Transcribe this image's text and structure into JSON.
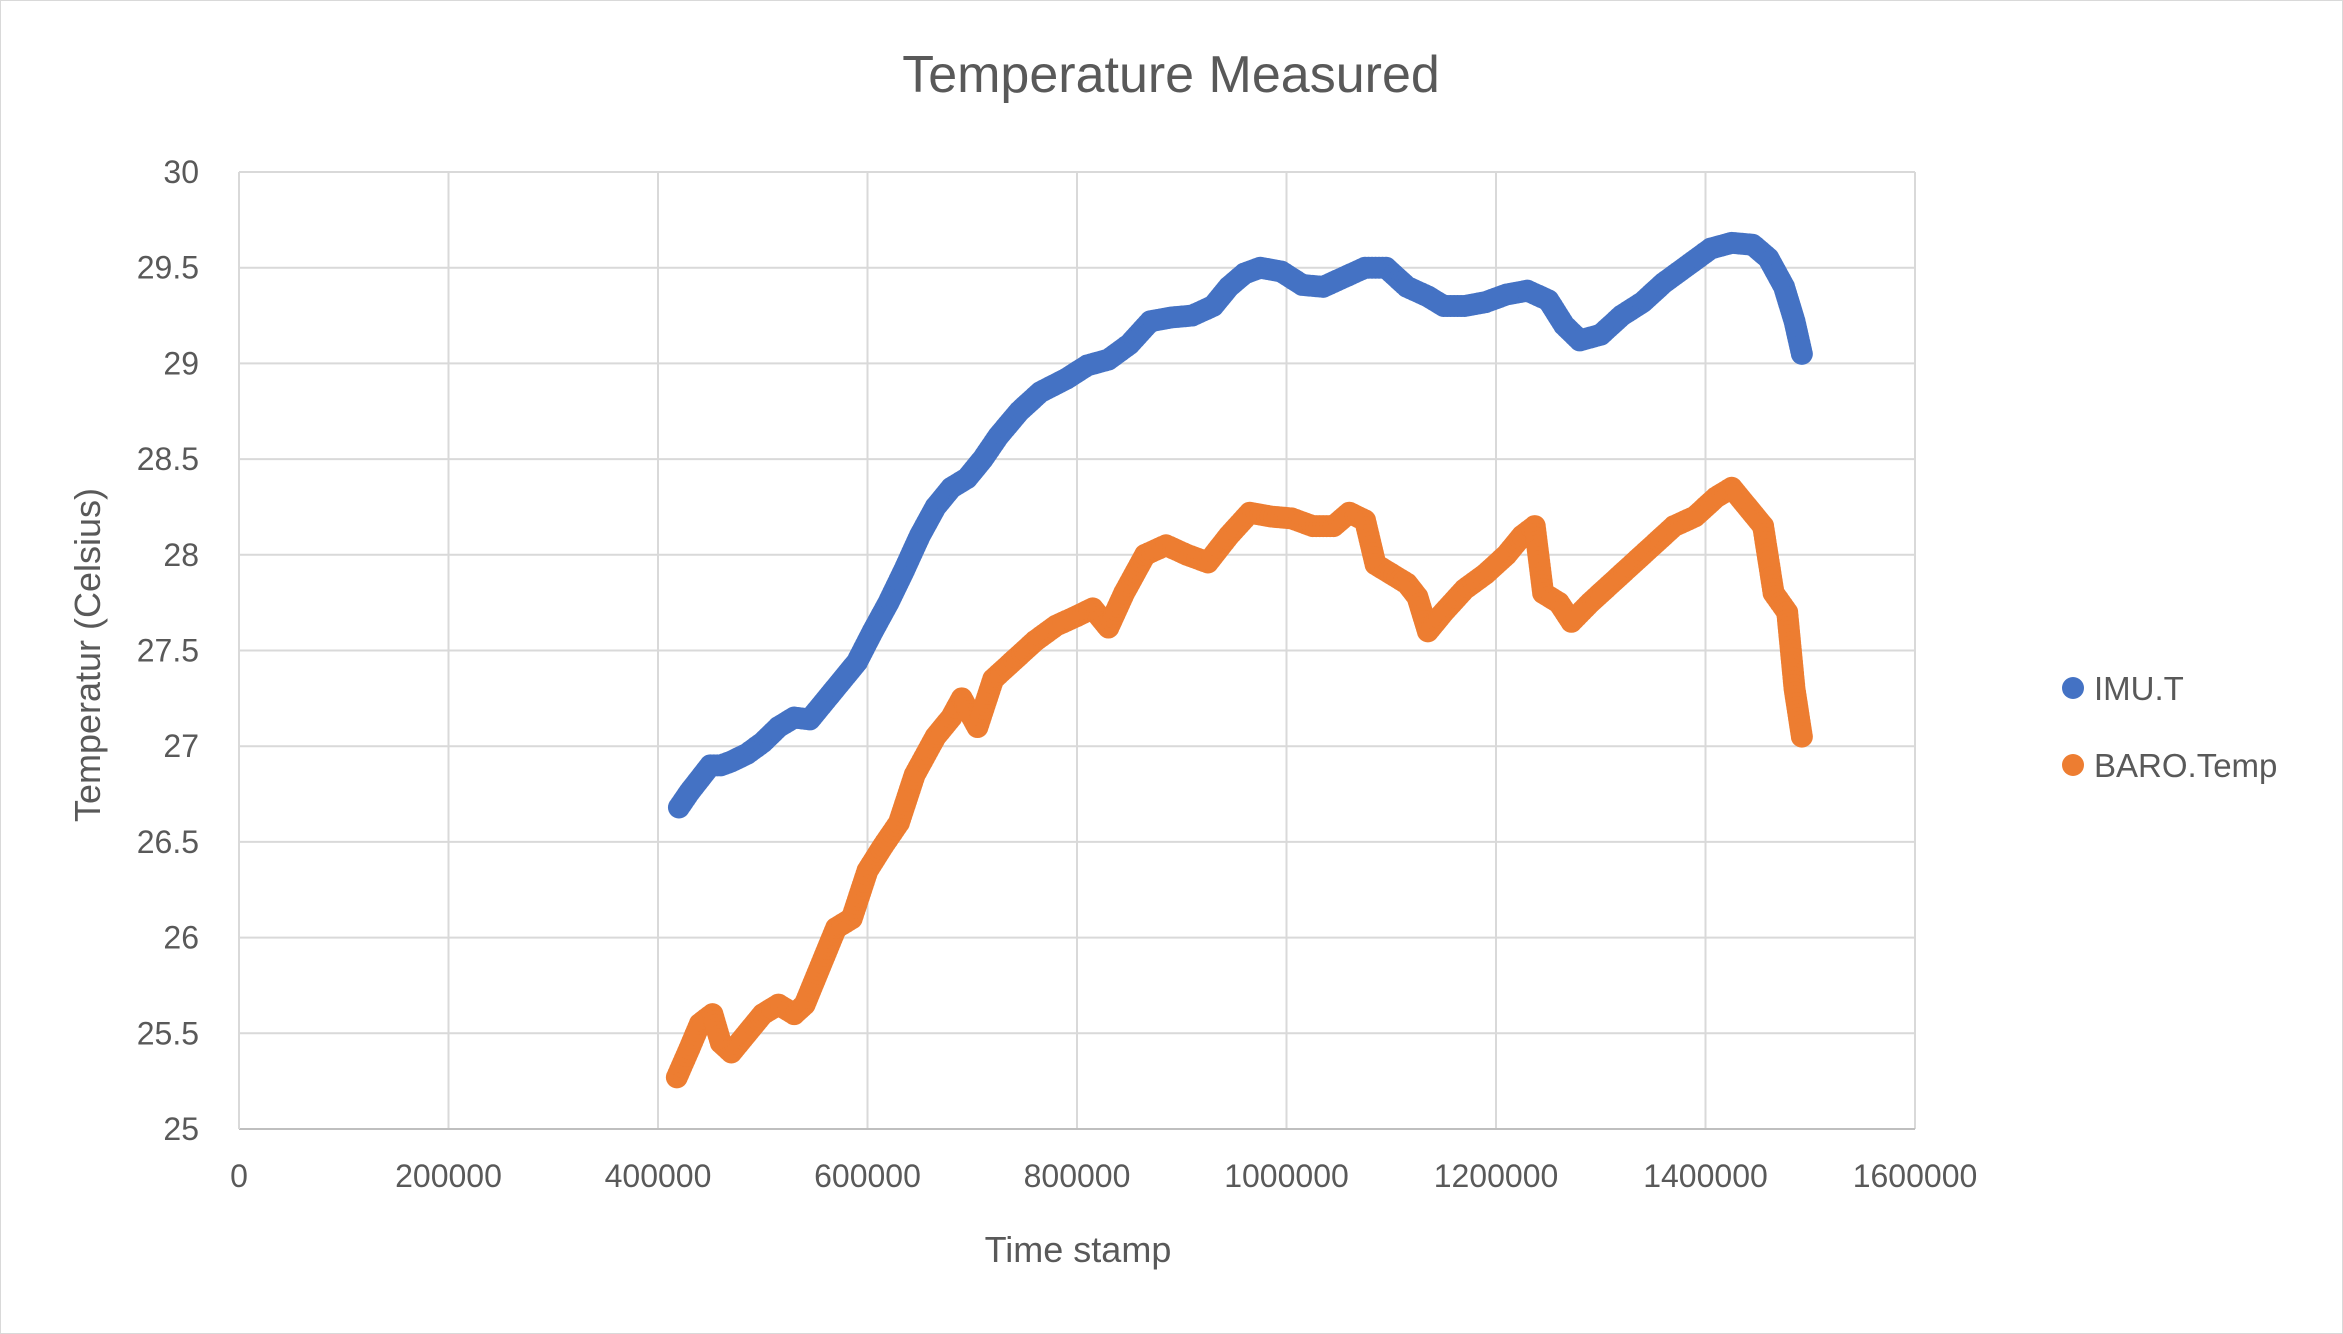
{
  "chart_data": {
    "type": "scatter",
    "title": "Temperature Measured",
    "xlabel": "Time stamp",
    "ylabel": "Temperatur (Celsius)",
    "xlim": [
      0,
      1600000
    ],
    "ylim": [
      25,
      30
    ],
    "x_ticks": [
      "0",
      "200000",
      "400000",
      "600000",
      "800000",
      "1000000",
      "1200000",
      "1400000",
      "1600000"
    ],
    "y_ticks": [
      "25",
      "25.5",
      "26",
      "26.5",
      "27",
      "27.5",
      "28",
      "28.5",
      "29",
      "29.5",
      "30"
    ],
    "grid": true,
    "legend_position": "right",
    "series": [
      {
        "name": "IMU.T",
        "color": "#4472C4",
        "points": [
          [
            420000,
            26.68
          ],
          [
            430000,
            26.76
          ],
          [
            440000,
            26.83
          ],
          [
            450000,
            26.9
          ],
          [
            460000,
            26.9
          ],
          [
            470000,
            26.92
          ],
          [
            485000,
            26.96
          ],
          [
            500000,
            27.02
          ],
          [
            515000,
            27.1
          ],
          [
            530000,
            27.15
          ],
          [
            545000,
            27.14
          ],
          [
            560000,
            27.24
          ],
          [
            575000,
            27.34
          ],
          [
            590000,
            27.44
          ],
          [
            605000,
            27.6
          ],
          [
            620000,
            27.75
          ],
          [
            635000,
            27.92
          ],
          [
            650000,
            28.1
          ],
          [
            665000,
            28.25
          ],
          [
            680000,
            28.35
          ],
          [
            695000,
            28.4
          ],
          [
            710000,
            28.5
          ],
          [
            725000,
            28.62
          ],
          [
            745000,
            28.75
          ],
          [
            765000,
            28.85
          ],
          [
            790000,
            28.92
          ],
          [
            810000,
            28.99
          ],
          [
            830000,
            29.02
          ],
          [
            850000,
            29.1
          ],
          [
            870000,
            29.22
          ],
          [
            890000,
            29.24
          ],
          [
            910000,
            29.25
          ],
          [
            930000,
            29.3
          ],
          [
            945000,
            29.4
          ],
          [
            960000,
            29.47
          ],
          [
            975000,
            29.5
          ],
          [
            995000,
            29.48
          ],
          [
            1015000,
            29.41
          ],
          [
            1035000,
            29.4
          ],
          [
            1055000,
            29.45
          ],
          [
            1075000,
            29.5
          ],
          [
            1095000,
            29.5
          ],
          [
            1115000,
            29.4
          ],
          [
            1135000,
            29.35
          ],
          [
            1150000,
            29.3
          ],
          [
            1170000,
            29.3
          ],
          [
            1190000,
            29.32
          ],
          [
            1210000,
            29.36
          ],
          [
            1230000,
            29.38
          ],
          [
            1250000,
            29.33
          ],
          [
            1265000,
            29.2
          ],
          [
            1280000,
            29.12
          ],
          [
            1300000,
            29.15
          ],
          [
            1320000,
            29.25
          ],
          [
            1340000,
            29.32
          ],
          [
            1360000,
            29.42
          ],
          [
            1385000,
            29.52
          ],
          [
            1405000,
            29.6
          ],
          [
            1425000,
            29.63
          ],
          [
            1445000,
            29.62
          ],
          [
            1460000,
            29.55
          ],
          [
            1475000,
            29.4
          ],
          [
            1485000,
            29.22
          ],
          [
            1492000,
            29.05
          ]
        ]
      },
      {
        "name": "BARO.Temp",
        "color": "#ED7D31",
        "points": [
          [
            418000,
            25.27
          ],
          [
            430000,
            25.42
          ],
          [
            440000,
            25.55
          ],
          [
            452000,
            25.6
          ],
          [
            460000,
            25.45
          ],
          [
            470000,
            25.4
          ],
          [
            485000,
            25.5
          ],
          [
            500000,
            25.6
          ],
          [
            515000,
            25.65
          ],
          [
            530000,
            25.6
          ],
          [
            540000,
            25.65
          ],
          [
            555000,
            25.85
          ],
          [
            570000,
            26.05
          ],
          [
            585000,
            26.1
          ],
          [
            600000,
            26.35
          ],
          [
            615000,
            26.48
          ],
          [
            630000,
            26.6
          ],
          [
            645000,
            26.85
          ],
          [
            665000,
            27.05
          ],
          [
            680000,
            27.15
          ],
          [
            690000,
            27.25
          ],
          [
            705000,
            27.1
          ],
          [
            720000,
            27.35
          ],
          [
            740000,
            27.45
          ],
          [
            760000,
            27.55
          ],
          [
            780000,
            27.63
          ],
          [
            800000,
            27.68
          ],
          [
            815000,
            27.72
          ],
          [
            830000,
            27.62
          ],
          [
            845000,
            27.8
          ],
          [
            865000,
            28.0
          ],
          [
            885000,
            28.05
          ],
          [
            905000,
            28.0
          ],
          [
            925000,
            27.96
          ],
          [
            945000,
            28.1
          ],
          [
            965000,
            28.22
          ],
          [
            985000,
            28.2
          ],
          [
            1005000,
            28.19
          ],
          [
            1025000,
            28.15
          ],
          [
            1045000,
            28.15
          ],
          [
            1060000,
            28.22
          ],
          [
            1075000,
            28.18
          ],
          [
            1085000,
            27.95
          ],
          [
            1100000,
            27.9
          ],
          [
            1115000,
            27.85
          ],
          [
            1125000,
            27.78
          ],
          [
            1135000,
            27.6
          ],
          [
            1150000,
            27.7
          ],
          [
            1170000,
            27.82
          ],
          [
            1190000,
            27.9
          ],
          [
            1210000,
            28.0
          ],
          [
            1225000,
            28.1
          ],
          [
            1237000,
            28.15
          ],
          [
            1245000,
            27.8
          ],
          [
            1260000,
            27.75
          ],
          [
            1272000,
            27.65
          ],
          [
            1290000,
            27.75
          ],
          [
            1310000,
            27.85
          ],
          [
            1330000,
            27.95
          ],
          [
            1350000,
            28.05
          ],
          [
            1370000,
            28.15
          ],
          [
            1390000,
            28.2
          ],
          [
            1410000,
            28.3
          ],
          [
            1425000,
            28.35
          ],
          [
            1440000,
            28.25
          ],
          [
            1455000,
            28.15
          ],
          [
            1465000,
            27.8
          ],
          [
            1478000,
            27.7
          ],
          [
            1485000,
            27.3
          ],
          [
            1492000,
            27.05
          ]
        ]
      }
    ]
  }
}
